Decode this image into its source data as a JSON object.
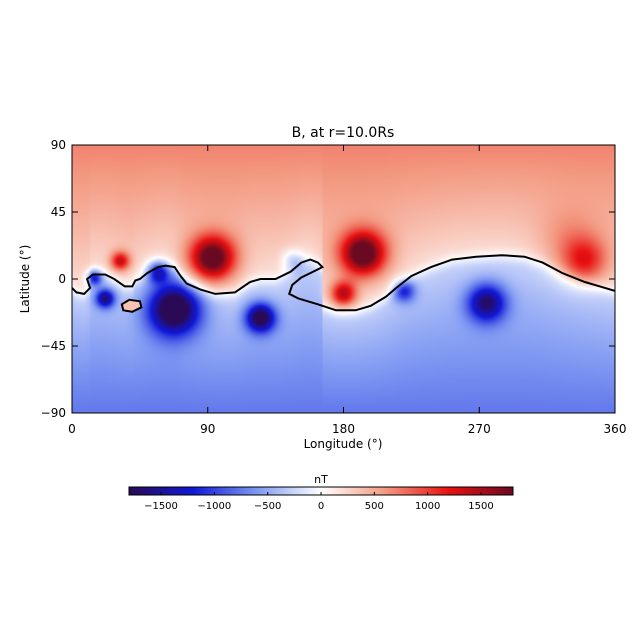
{
  "chart_data": {
    "type": "heatmap",
    "title": "B, at r=10.0Rs",
    "xlabel": "Longitude (°)",
    "ylabel": "Latitude (°)",
    "xlim": [
      0,
      360
    ],
    "ylim": [
      -90,
      90
    ],
    "xticks": [
      0,
      90,
      180,
      270,
      360
    ],
    "yticks": [
      -90,
      -45,
      0,
      45,
      90
    ],
    "colorbar": {
      "label": "nT",
      "range": [
        -1800,
        1800
      ],
      "ticks": [
        -1500,
        -1000,
        -500,
        0,
        500,
        1000,
        1500
      ],
      "tick_labels": [
        "−1500",
        "−1000",
        "−500",
        "0",
        "500",
        "1000",
        "1500"
      ],
      "placement": "bottom",
      "colors": [
        "#2a0a55",
        "#1018d8",
        "#7e98f2",
        "#ffffff",
        "#f39a82",
        "#e81010",
        "#6a0a22"
      ]
    },
    "background": {
      "north_pole_nT": 700,
      "north_boundary_nT": 150,
      "south_boundary_nT": -200,
      "south_pole_nT": -750
    },
    "neutral_line": {
      "level_nT": 0,
      "color": "#000000",
      "points": [
        [
          0,
          -6
        ],
        [
          3,
          -9
        ],
        [
          8,
          -10
        ],
        [
          12,
          -6
        ],
        [
          10,
          0
        ],
        [
          14,
          3
        ],
        [
          22,
          3
        ],
        [
          28,
          0
        ],
        [
          35,
          -5
        ],
        [
          40,
          -5
        ],
        [
          42,
          -1
        ],
        [
          45,
          0
        ],
        [
          50,
          4
        ],
        [
          57,
          8
        ],
        [
          62,
          9
        ],
        [
          68,
          8
        ],
        [
          72,
          2
        ],
        [
          76,
          -3
        ],
        [
          85,
          -7
        ],
        [
          95,
          -10
        ],
        [
          108,
          -9
        ],
        [
          118,
          -2
        ],
        [
          125,
          0
        ],
        [
          135,
          0
        ],
        [
          145,
          5
        ],
        [
          152,
          11
        ],
        [
          158,
          13
        ],
        [
          163,
          11
        ],
        [
          166,
          8
        ],
        [
          160,
          5
        ],
        [
          152,
          1
        ],
        [
          146,
          -4
        ],
        [
          144,
          -10
        ],
        [
          150,
          -13
        ],
        [
          163,
          -17
        ],
        [
          175,
          -21
        ],
        [
          188,
          -21
        ],
        [
          198,
          -18
        ],
        [
          208,
          -12
        ],
        [
          215,
          -6
        ],
        [
          225,
          2
        ],
        [
          238,
          8
        ],
        [
          252,
          13
        ],
        [
          268,
          15
        ],
        [
          285,
          16
        ],
        [
          300,
          15
        ],
        [
          312,
          11
        ],
        [
          325,
          4
        ],
        [
          340,
          -2
        ],
        [
          350,
          -5
        ],
        [
          360,
          -8
        ]
      ],
      "islands": [
        [
          [
            33,
            -17
          ],
          [
            38,
            -14
          ],
          [
            45,
            -15
          ],
          [
            46,
            -19
          ],
          [
            40,
            -22
          ],
          [
            34,
            -21
          ]
        ]
      ]
    },
    "features": [
      {
        "lon": 32,
        "lat": 12,
        "value_nT": 1100,
        "radius_deg": 6
      },
      {
        "lon": 93,
        "lat": 14,
        "value_nT": 1750,
        "radius_deg": 14
      },
      {
        "lon": 193,
        "lat": 17,
        "value_nT": 1750,
        "radius_deg": 14
      },
      {
        "lon": 180,
        "lat": -10,
        "value_nT": 1200,
        "radius_deg": 8
      },
      {
        "lon": 340,
        "lat": 12,
        "value_nT": 800,
        "radius_deg": 14
      },
      {
        "lon": 330,
        "lat": 25,
        "value_nT": 300,
        "radius_deg": 20
      },
      {
        "lon": 15,
        "lat": 1,
        "value_nT": -1100,
        "radius_deg": 5
      },
      {
        "lon": 22,
        "lat": -13,
        "value_nT": -1300,
        "radius_deg": 6
      },
      {
        "lon": 57,
        "lat": 5,
        "value_nT": -1100,
        "radius_deg": 7
      },
      {
        "lon": 68,
        "lat": -20,
        "value_nT": -1800,
        "radius_deg": 16
      },
      {
        "lon": 125,
        "lat": -26,
        "value_nT": -1600,
        "radius_deg": 9
      },
      {
        "lon": 220,
        "lat": -8,
        "value_nT": -900,
        "radius_deg": 7
      },
      {
        "lon": 275,
        "lat": -16,
        "value_nT": -1300,
        "radius_deg": 12
      },
      {
        "lon": 147,
        "lat": 12,
        "value_nT": -500,
        "radius_deg": 7
      }
    ]
  }
}
